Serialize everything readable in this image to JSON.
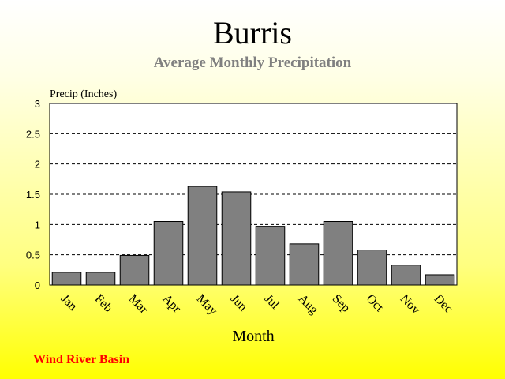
{
  "colors": {
    "bar_fill": "#808080",
    "bar_stroke": "#000000",
    "plot_bg": "#ffffff",
    "subtitle": "#808080",
    "footer": "#ff0000"
  },
  "footer_label": "Wind River Basin",
  "chart_data": {
    "type": "bar",
    "title": "Burris",
    "subtitle": "Average Monthly Precipitation",
    "xlabel": "Month",
    "ylabel": "Precip (Inches)",
    "ylim": [
      0,
      3
    ],
    "yticks": [
      0,
      0.5,
      1,
      1.5,
      2,
      2.5,
      3
    ],
    "ytick_labels": [
      "0",
      "0.5",
      "1",
      "1.5",
      "2",
      "2.5",
      "3"
    ],
    "grid": "horizontal-dashed",
    "categories": [
      "Jan",
      "Feb",
      "Mar",
      "Apr",
      "May",
      "Jun",
      "Jul",
      "Aug",
      "Sep",
      "Oct",
      "Nov",
      "Dec"
    ],
    "values": [
      0.21,
      0.21,
      0.49,
      1.05,
      1.63,
      1.54,
      0.97,
      0.68,
      1.05,
      0.58,
      0.33,
      0.17
    ]
  }
}
